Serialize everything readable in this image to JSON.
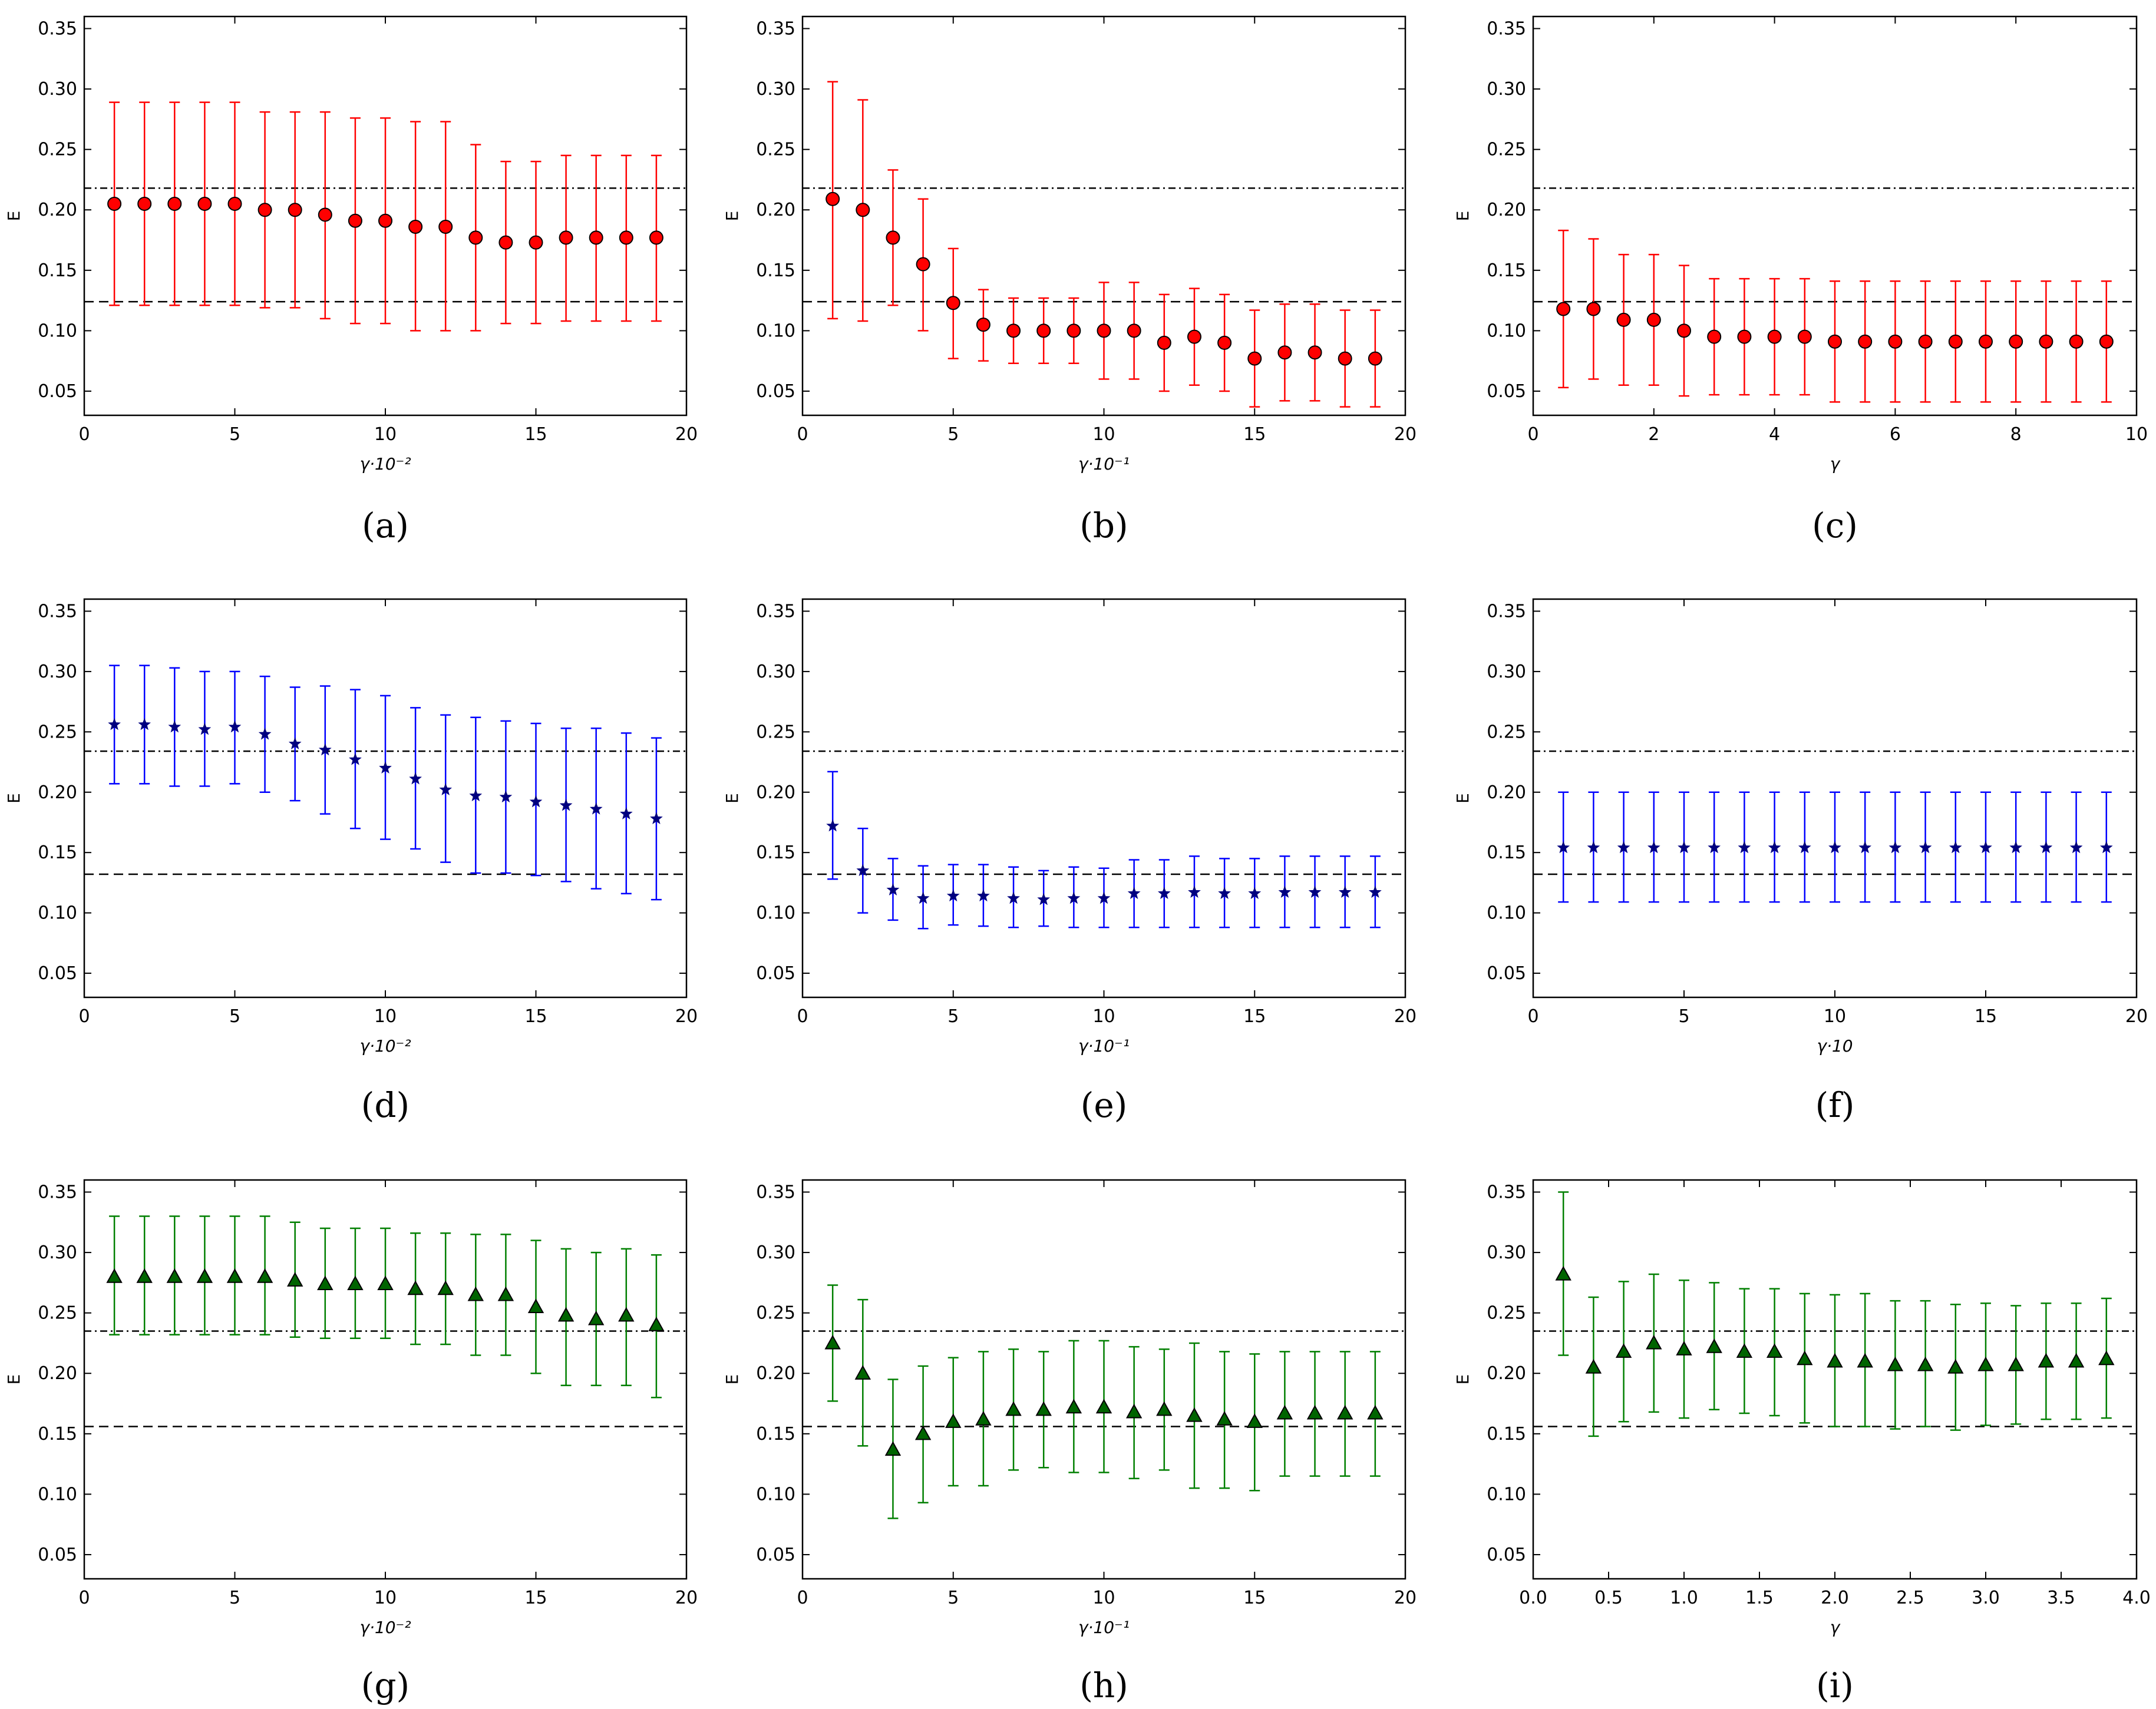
{
  "colors": {
    "red": "#ff0000",
    "blue": "#0000ff",
    "green": "#007f00",
    "marker_red": "#ff0000",
    "marker_blue": "#00007f",
    "marker_green": "#006400"
  },
  "chart_data": [
    {
      "id": "a",
      "caption": "(a)",
      "type": "scatter",
      "marker": "circle",
      "color": "red",
      "xlabel": "γ·10⁻²",
      "ylabel": "E",
      "xlim": [
        0,
        20
      ],
      "ylim": [
        0.03,
        0.36
      ],
      "xticks": [
        "0",
        "5",
        "10",
        "15",
        "20"
      ],
      "yticks": [
        "0.05",
        "0.10",
        "0.15",
        "0.20",
        "0.25",
        "0.30",
        "0.35"
      ],
      "hlines": {
        "dashdot": 0.218,
        "dashed": 0.124
      },
      "x": [
        1,
        2,
        3,
        4,
        5,
        6,
        7,
        8,
        9,
        10,
        11,
        12,
        13,
        14,
        15,
        16,
        17,
        18,
        19
      ],
      "y": [
        0.205,
        0.205,
        0.205,
        0.205,
        0.205,
        0.2,
        0.2,
        0.196,
        0.191,
        0.191,
        0.186,
        0.186,
        0.177,
        0.173,
        0.173,
        0.177,
        0.177,
        0.177,
        0.177
      ],
      "err_low": [
        0.121,
        0.121,
        0.121,
        0.121,
        0.121,
        0.119,
        0.119,
        0.11,
        0.106,
        0.106,
        0.1,
        0.1,
        0.1,
        0.106,
        0.106,
        0.108,
        0.108,
        0.108,
        0.108
      ],
      "err_high": [
        0.289,
        0.289,
        0.289,
        0.289,
        0.289,
        0.281,
        0.281,
        0.281,
        0.276,
        0.276,
        0.273,
        0.273,
        0.254,
        0.24,
        0.24,
        0.245,
        0.245,
        0.245,
        0.245
      ]
    },
    {
      "id": "b",
      "caption": "(b)",
      "type": "scatter",
      "marker": "circle",
      "color": "red",
      "xlabel": "γ·10⁻¹",
      "ylabel": "E",
      "xlim": [
        0,
        20
      ],
      "ylim": [
        0.03,
        0.36
      ],
      "xticks": [
        "0",
        "5",
        "10",
        "15",
        "20"
      ],
      "yticks": [
        "0.05",
        "0.10",
        "0.15",
        "0.20",
        "0.25",
        "0.30",
        "0.35"
      ],
      "hlines": {
        "dashdot": 0.218,
        "dashed": 0.124
      },
      "x": [
        1,
        2,
        3,
        4,
        5,
        6,
        7,
        8,
        9,
        10,
        11,
        12,
        13,
        14,
        15,
        16,
        17,
        18,
        19
      ],
      "y": [
        0.209,
        0.2,
        0.177,
        0.155,
        0.123,
        0.105,
        0.1,
        0.1,
        0.1,
        0.1,
        0.1,
        0.09,
        0.095,
        0.09,
        0.077,
        0.082,
        0.082,
        0.077,
        0.077
      ],
      "err_low": [
        0.11,
        0.108,
        0.121,
        0.1,
        0.077,
        0.075,
        0.073,
        0.073,
        0.073,
        0.06,
        0.06,
        0.05,
        0.055,
        0.05,
        0.037,
        0.042,
        0.042,
        0.037,
        0.037
      ],
      "err_high": [
        0.306,
        0.291,
        0.233,
        0.209,
        0.168,
        0.134,
        0.127,
        0.127,
        0.127,
        0.14,
        0.14,
        0.13,
        0.135,
        0.13,
        0.117,
        0.122,
        0.122,
        0.117,
        0.117
      ]
    },
    {
      "id": "c",
      "caption": "(c)",
      "type": "scatter",
      "marker": "circle",
      "color": "red",
      "xlabel": "γ",
      "ylabel": "E",
      "xlim": [
        0,
        10
      ],
      "ylim": [
        0.03,
        0.36
      ],
      "xticks": [
        "0",
        "2",
        "4",
        "6",
        "8",
        "10"
      ],
      "yticks": [
        "0.05",
        "0.10",
        "0.15",
        "0.20",
        "0.25",
        "0.30",
        "0.35"
      ],
      "hlines": {
        "dashdot": 0.218,
        "dashed": 0.124
      },
      "x": [
        0.5,
        1,
        1.5,
        2,
        2.5,
        3,
        3.5,
        4,
        4.5,
        5,
        5.5,
        6,
        6.5,
        7,
        7.5,
        8,
        8.5,
        9,
        9.5
      ],
      "y": [
        0.118,
        0.118,
        0.109,
        0.109,
        0.1,
        0.095,
        0.095,
        0.095,
        0.095,
        0.091,
        0.091,
        0.091,
        0.091,
        0.091,
        0.091,
        0.091,
        0.091,
        0.091,
        0.091
      ],
      "err_low": [
        0.053,
        0.06,
        0.055,
        0.055,
        0.046,
        0.047,
        0.047,
        0.047,
        0.047,
        0.041,
        0.041,
        0.041,
        0.041,
        0.041,
        0.041,
        0.041,
        0.041,
        0.041,
        0.041
      ],
      "err_high": [
        0.183,
        0.176,
        0.163,
        0.163,
        0.154,
        0.143,
        0.143,
        0.143,
        0.143,
        0.141,
        0.141,
        0.141,
        0.141,
        0.141,
        0.141,
        0.141,
        0.141,
        0.141,
        0.141
      ]
    },
    {
      "id": "d",
      "caption": "(d)",
      "type": "scatter",
      "marker": "star",
      "color": "blue",
      "xlabel": "γ·10⁻²",
      "ylabel": "E",
      "xlim": [
        0,
        20
      ],
      "ylim": [
        0.03,
        0.36
      ],
      "xticks": [
        "0",
        "5",
        "10",
        "15",
        "20"
      ],
      "yticks": [
        "0.05",
        "0.10",
        "0.15",
        "0.20",
        "0.25",
        "0.30",
        "0.35"
      ],
      "hlines": {
        "dashdot": 0.234,
        "dashed": 0.132
      },
      "x": [
        1,
        2,
        3,
        4,
        5,
        6,
        7,
        8,
        9,
        10,
        11,
        12,
        13,
        14,
        15,
        16,
        17,
        18,
        19
      ],
      "y": [
        0.256,
        0.256,
        0.254,
        0.252,
        0.254,
        0.248,
        0.24,
        0.235,
        0.227,
        0.22,
        0.211,
        0.202,
        0.197,
        0.196,
        0.192,
        0.189,
        0.186,
        0.182,
        0.178
      ],
      "err_low": [
        0.207,
        0.207,
        0.205,
        0.205,
        0.207,
        0.2,
        0.193,
        0.182,
        0.17,
        0.161,
        0.153,
        0.142,
        0.133,
        0.133,
        0.131,
        0.126,
        0.12,
        0.116,
        0.111
      ],
      "err_high": [
        0.305,
        0.305,
        0.303,
        0.3,
        0.3,
        0.296,
        0.287,
        0.288,
        0.285,
        0.28,
        0.27,
        0.264,
        0.262,
        0.259,
        0.257,
        0.253,
        0.253,
        0.249,
        0.245
      ]
    },
    {
      "id": "e",
      "caption": "(e)",
      "type": "scatter",
      "marker": "star",
      "color": "blue",
      "xlabel": "γ·10⁻¹",
      "ylabel": "E",
      "xlim": [
        0,
        20
      ],
      "ylim": [
        0.03,
        0.36
      ],
      "xticks": [
        "0",
        "5",
        "10",
        "15",
        "20"
      ],
      "yticks": [
        "0.05",
        "0.10",
        "0.15",
        "0.20",
        "0.25",
        "0.30",
        "0.35"
      ],
      "hlines": {
        "dashdot": 0.234,
        "dashed": 0.132
      },
      "x": [
        1,
        2,
        3,
        4,
        5,
        6,
        7,
        8,
        9,
        10,
        11,
        12,
        13,
        14,
        15,
        16,
        17,
        18,
        19
      ],
      "y": [
        0.172,
        0.135,
        0.119,
        0.112,
        0.114,
        0.114,
        0.112,
        0.111,
        0.112,
        0.112,
        0.116,
        0.116,
        0.117,
        0.116,
        0.116,
        0.117,
        0.117,
        0.117,
        0.117
      ],
      "err_low": [
        0.128,
        0.1,
        0.094,
        0.087,
        0.09,
        0.089,
        0.088,
        0.089,
        0.088,
        0.088,
        0.088,
        0.088,
        0.088,
        0.088,
        0.088,
        0.088,
        0.088,
        0.088,
        0.088
      ],
      "err_high": [
        0.217,
        0.17,
        0.145,
        0.139,
        0.14,
        0.14,
        0.138,
        0.135,
        0.138,
        0.137,
        0.144,
        0.144,
        0.147,
        0.145,
        0.145,
        0.147,
        0.147,
        0.147,
        0.147
      ]
    },
    {
      "id": "f",
      "caption": "(f)",
      "type": "scatter",
      "marker": "star",
      "color": "blue",
      "xlabel": "γ·10",
      "ylabel": "E",
      "xlim": [
        0,
        20
      ],
      "ylim": [
        0.03,
        0.36
      ],
      "xticks": [
        "0",
        "5",
        "10",
        "15",
        "20"
      ],
      "yticks": [
        "0.05",
        "0.10",
        "0.15",
        "0.20",
        "0.25",
        "0.30",
        "0.35"
      ],
      "hlines": {
        "dashdot": 0.234,
        "dashed": 0.132
      },
      "x": [
        1,
        2,
        3,
        4,
        5,
        6,
        7,
        8,
        9,
        10,
        11,
        12,
        13,
        14,
        15,
        16,
        17,
        18,
        19
      ],
      "y": [
        0.154,
        0.154,
        0.154,
        0.154,
        0.154,
        0.154,
        0.154,
        0.154,
        0.154,
        0.154,
        0.154,
        0.154,
        0.154,
        0.154,
        0.154,
        0.154,
        0.154,
        0.154,
        0.154
      ],
      "err_low": [
        0.109,
        0.109,
        0.109,
        0.109,
        0.109,
        0.109,
        0.109,
        0.109,
        0.109,
        0.109,
        0.109,
        0.109,
        0.109,
        0.109,
        0.109,
        0.109,
        0.109,
        0.109,
        0.109
      ],
      "err_high": [
        0.2,
        0.2,
        0.2,
        0.2,
        0.2,
        0.2,
        0.2,
        0.2,
        0.2,
        0.2,
        0.2,
        0.2,
        0.2,
        0.2,
        0.2,
        0.2,
        0.2,
        0.2,
        0.2
      ]
    },
    {
      "id": "g",
      "caption": "(g)",
      "type": "scatter",
      "marker": "triangle",
      "color": "green",
      "xlabel": "γ·10⁻²",
      "ylabel": "E",
      "xlim": [
        0,
        20
      ],
      "ylim": [
        0.03,
        0.36
      ],
      "xticks": [
        "0",
        "5",
        "10",
        "15",
        "20"
      ],
      "yticks": [
        "0.05",
        "0.10",
        "0.15",
        "0.20",
        "0.25",
        "0.30",
        "0.35"
      ],
      "hlines": {
        "dashdot": 0.235,
        "dashed": 0.156
      },
      "x": [
        1,
        2,
        3,
        4,
        5,
        6,
        7,
        8,
        9,
        10,
        11,
        12,
        13,
        14,
        15,
        16,
        17,
        18,
        19
      ],
      "y": [
        0.28,
        0.28,
        0.28,
        0.28,
        0.28,
        0.28,
        0.277,
        0.274,
        0.274,
        0.274,
        0.27,
        0.27,
        0.265,
        0.265,
        0.255,
        0.248,
        0.245,
        0.248,
        0.24
      ],
      "err_low": [
        0.232,
        0.232,
        0.232,
        0.232,
        0.232,
        0.232,
        0.23,
        0.229,
        0.229,
        0.229,
        0.224,
        0.224,
        0.215,
        0.215,
        0.2,
        0.19,
        0.19,
        0.19,
        0.18
      ],
      "err_high": [
        0.33,
        0.33,
        0.33,
        0.33,
        0.33,
        0.33,
        0.325,
        0.32,
        0.32,
        0.32,
        0.316,
        0.316,
        0.315,
        0.315,
        0.31,
        0.303,
        0.3,
        0.303,
        0.298
      ]
    },
    {
      "id": "h",
      "caption": "(h)",
      "type": "scatter",
      "marker": "triangle",
      "color": "green",
      "xlabel": "γ·10⁻¹",
      "ylabel": "E",
      "xlim": [
        0,
        20
      ],
      "ylim": [
        0.03,
        0.36
      ],
      "xticks": [
        "0",
        "5",
        "10",
        "15",
        "20"
      ],
      "yticks": [
        "0.05",
        "0.10",
        "0.15",
        "0.20",
        "0.25",
        "0.30",
        "0.35"
      ],
      "hlines": {
        "dashdot": 0.235,
        "dashed": 0.156
      },
      "x": [
        1,
        2,
        3,
        4,
        5,
        6,
        7,
        8,
        9,
        10,
        11,
        12,
        13,
        14,
        15,
        16,
        17,
        18,
        19
      ],
      "y": [
        0.225,
        0.2,
        0.137,
        0.15,
        0.16,
        0.162,
        0.17,
        0.17,
        0.172,
        0.172,
        0.168,
        0.17,
        0.165,
        0.162,
        0.16,
        0.167,
        0.167,
        0.167,
        0.167
      ],
      "err_low": [
        0.177,
        0.14,
        0.08,
        0.093,
        0.107,
        0.107,
        0.12,
        0.122,
        0.118,
        0.118,
        0.113,
        0.12,
        0.105,
        0.105,
        0.103,
        0.115,
        0.115,
        0.115,
        0.115
      ],
      "err_high": [
        0.273,
        0.261,
        0.195,
        0.206,
        0.213,
        0.218,
        0.22,
        0.218,
        0.227,
        0.227,
        0.222,
        0.22,
        0.225,
        0.218,
        0.216,
        0.218,
        0.218,
        0.218,
        0.218
      ]
    },
    {
      "id": "i",
      "caption": "(i)",
      "type": "scatter",
      "marker": "triangle",
      "color": "green",
      "xlabel": "γ",
      "ylabel": "E",
      "xlim": [
        0,
        4
      ],
      "ylim": [
        0.03,
        0.36
      ],
      "xticks": [
        "0.0",
        "0.5",
        "1.0",
        "1.5",
        "2.0",
        "2.5",
        "3.0",
        "3.5",
        "4.0"
      ],
      "yticks": [
        "0.05",
        "0.10",
        "0.15",
        "0.20",
        "0.25",
        "0.30",
        "0.35"
      ],
      "hlines": {
        "dashdot": 0.235,
        "dashed": 0.156
      },
      "x": [
        0.2,
        0.4,
        0.6,
        0.8,
        1.0,
        1.2,
        1.4,
        1.6,
        1.8,
        2.0,
        2.2,
        2.4,
        2.6,
        2.8,
        3.0,
        3.2,
        3.4,
        3.6,
        3.8
      ],
      "y": [
        0.282,
        0.205,
        0.218,
        0.225,
        0.22,
        0.222,
        0.218,
        0.218,
        0.212,
        0.21,
        0.21,
        0.207,
        0.207,
        0.205,
        0.207,
        0.207,
        0.21,
        0.21,
        0.212
      ],
      "err_low": [
        0.215,
        0.148,
        0.16,
        0.168,
        0.163,
        0.17,
        0.167,
        0.165,
        0.159,
        0.156,
        0.156,
        0.154,
        0.156,
        0.153,
        0.157,
        0.158,
        0.162,
        0.162,
        0.163
      ],
      "err_high": [
        0.35,
        0.263,
        0.276,
        0.282,
        0.277,
        0.275,
        0.27,
        0.27,
        0.266,
        0.265,
        0.266,
        0.26,
        0.26,
        0.257,
        0.258,
        0.256,
        0.258,
        0.258,
        0.262
      ]
    }
  ]
}
